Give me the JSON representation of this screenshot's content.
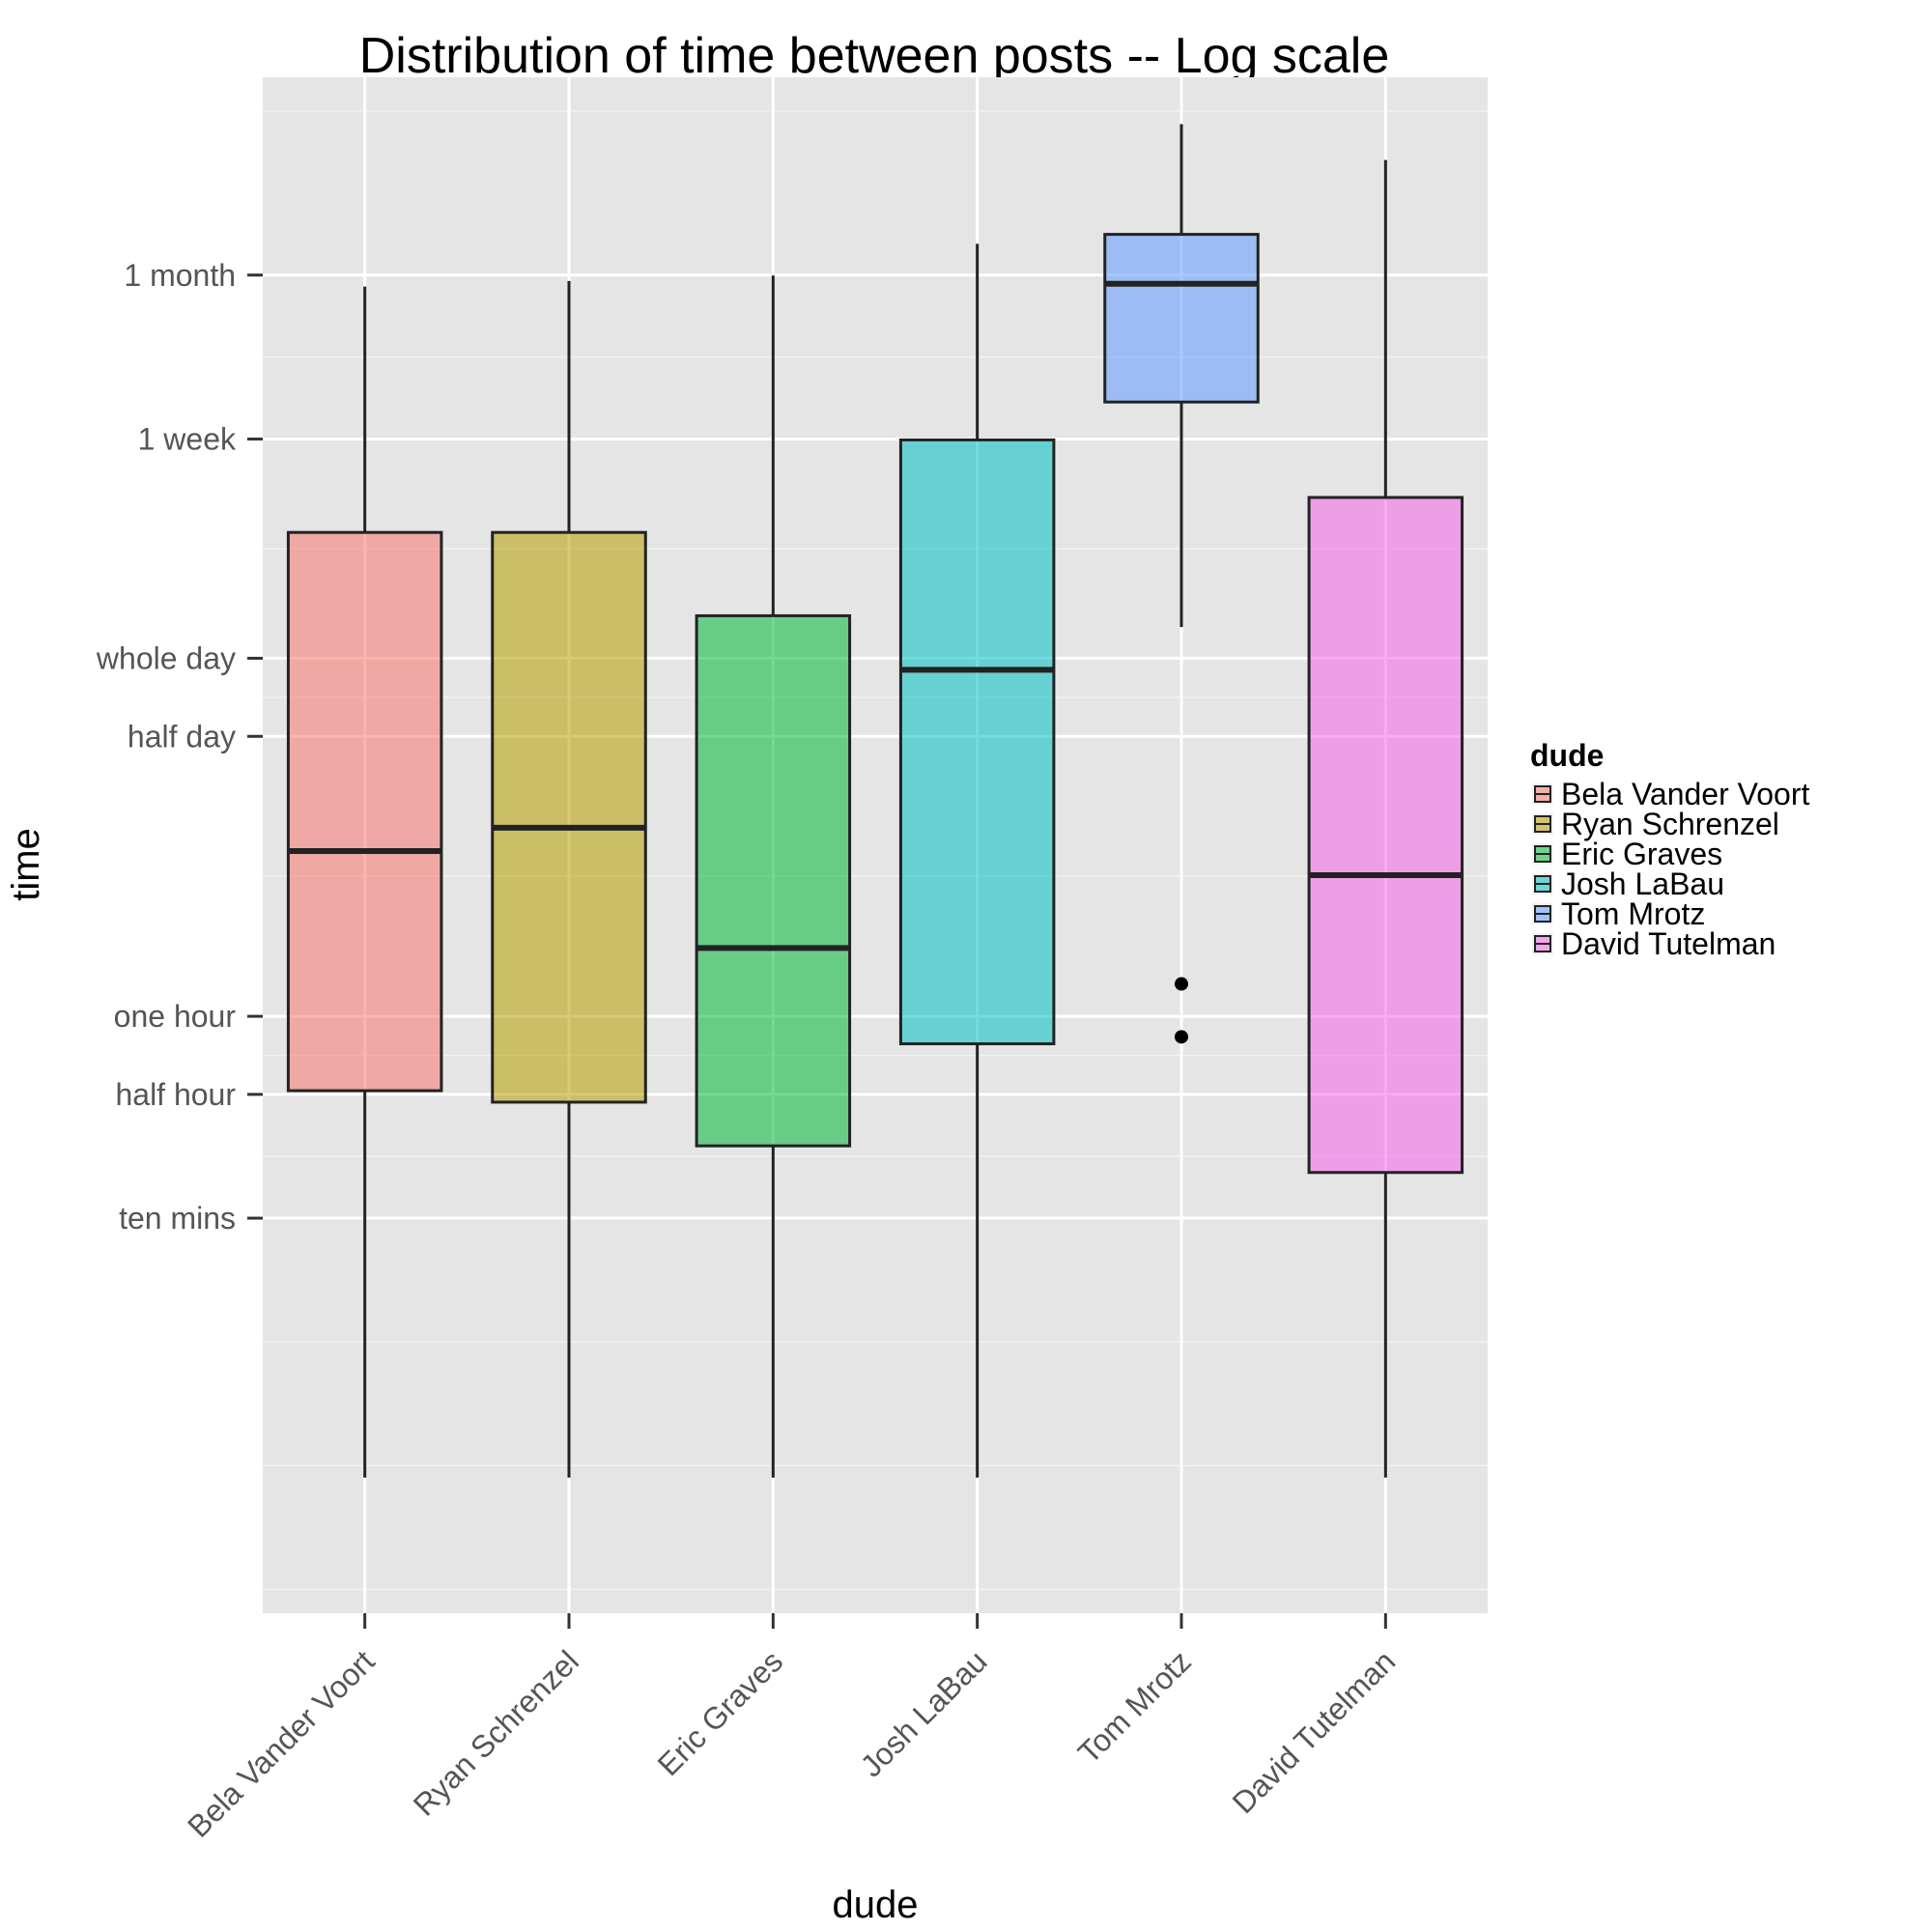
{
  "chart_data": {
    "type": "box",
    "title": "Distribution of time between posts -- Log scale",
    "xlabel": "dude",
    "ylabel": "time",
    "y_scale": "log",
    "y_unit": "minutes",
    "ylim": [
      0.3,
      250000
    ],
    "y_ticks": [
      {
        "label": "ten mins",
        "value": 10
      },
      {
        "label": "half hour",
        "value": 30
      },
      {
        "label": "one hour",
        "value": 60
      },
      {
        "label": "half day",
        "value": 720
      },
      {
        "label": "whole day",
        "value": 1440
      },
      {
        "label": "1 week",
        "value": 10080
      },
      {
        "label": "1 month",
        "value": 43200
      }
    ],
    "categories": [
      "Bela Vander Voort",
      "Ryan Schrenzel",
      "Eric Graves",
      "Josh LaBau",
      "Tom Mrotz",
      "David Tutelman"
    ],
    "series": [
      {
        "name": "Bela Vander Voort",
        "color": "#F8766D",
        "min": 1,
        "q1": 31,
        "median": 260,
        "q3": 4400,
        "max": 39000,
        "outliers": []
      },
      {
        "name": "Ryan Schrenzel",
        "color": "#B79F00",
        "min": 1,
        "q1": 28,
        "median": 320,
        "q3": 4400,
        "max": 41000,
        "outliers": []
      },
      {
        "name": "Eric Graves",
        "color": "#00BA38",
        "min": 1,
        "q1": 19,
        "median": 110,
        "q3": 2100,
        "max": 43000,
        "outliers": []
      },
      {
        "name": "Josh LaBau",
        "color": "#00BFC4",
        "min": 1,
        "q1": 47,
        "median": 1300,
        "q3": 10000,
        "max": 57000,
        "outliers": []
      },
      {
        "name": "Tom Mrotz",
        "color": "#619CFF",
        "min": 1900,
        "q1": 14000,
        "median": 40000,
        "q3": 62000,
        "max": 165000,
        "outliers": [
          80,
          50
        ]
      },
      {
        "name": "David Tutelman",
        "color": "#F564E3",
        "min": 1,
        "q1": 15,
        "median": 210,
        "q3": 6000,
        "max": 120000,
        "outliers": []
      }
    ],
    "legend": {
      "title": "dude",
      "position": "right"
    },
    "grid": true
  }
}
